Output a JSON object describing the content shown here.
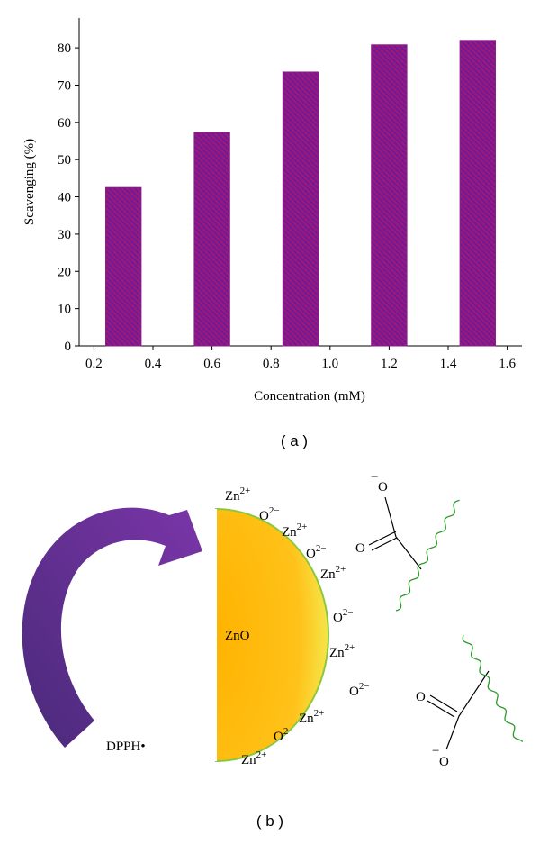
{
  "chart_data": {
    "type": "bar",
    "x_label": "Concentration (mM)",
    "y_label": "Scavenging (%)",
    "x": [
      0.3,
      0.6,
      0.9,
      1.2,
      1.5
    ],
    "values": [
      42.5,
      57.3,
      73.5,
      80.8,
      82
    ],
    "color": "#8b1a8b",
    "xlim": [
      0.15,
      1.65
    ],
    "ylim": [
      0,
      88
    ],
    "xticks": [
      0.2,
      0.4,
      0.6,
      0.8,
      {
        "value": 1,
        "label": "1.0"
      },
      1.2,
      1.4,
      1.6
    ],
    "yticks": [
      0,
      10,
      20,
      30,
      40,
      50,
      60,
      70,
      80
    ],
    "grid": false
  },
  "panel_labels": [
    "( a )",
    "( b )"
  ],
  "diagram": {
    "core": "ZnO",
    "reagent": "DPPH•",
    "ions": [
      {
        "base": "Zn",
        "sup": "2+"
      },
      {
        "base": "O",
        "sup": "2−"
      },
      {
        "base": "Zn",
        "sup": "2+"
      },
      {
        "base": "O",
        "sup": "2−"
      },
      {
        "base": "Zn",
        "sup": "2+"
      },
      {
        "base": "O",
        "sup": "2−"
      },
      {
        "base": "Zn",
        "sup": "2+"
      },
      {
        "base": "O",
        "sup": "2−"
      },
      {
        "base": "Zn",
        "sup": "2+"
      },
      {
        "base": "O",
        "sup": "2−"
      },
      {
        "base": "Zn",
        "sup": "2+"
      }
    ],
    "carboxylates": [
      {
        "anion": "O",
        "charge": "−",
        "carbonyl": "O"
      },
      {
        "anion": "O",
        "charge": "−",
        "carbonyl": "O"
      }
    ]
  }
}
